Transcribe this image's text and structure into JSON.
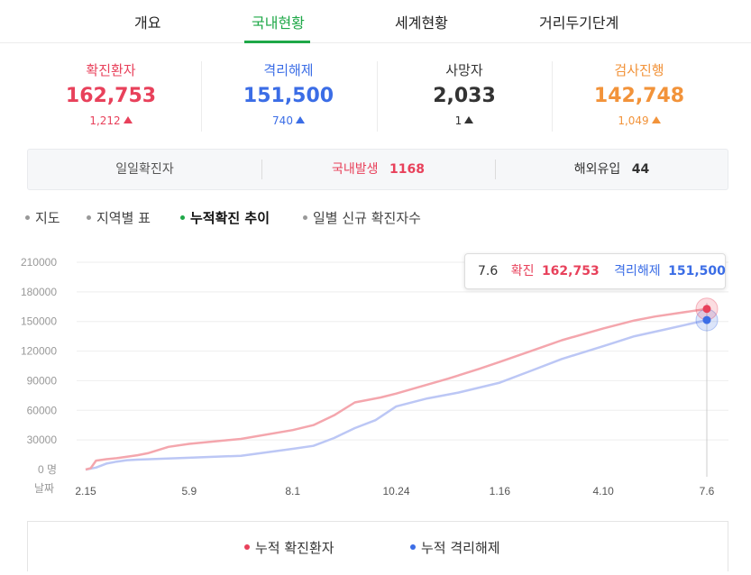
{
  "tabs": [
    {
      "label": "개요"
    },
    {
      "label": "국내현황"
    },
    {
      "label": "세계현황"
    },
    {
      "label": "거리두기단계"
    }
  ],
  "stats": {
    "confirmed": {
      "label": "확진환자",
      "value": "162,753",
      "delta": "1,212",
      "color": "#e8415b"
    },
    "released": {
      "label": "격리해제",
      "value": "151,500",
      "delta": "740",
      "color": "#3b6de6"
    },
    "deaths": {
      "label": "사망자",
      "value": "2,033",
      "delta": "1",
      "color": "#333333"
    },
    "testing": {
      "label": "검사진행",
      "value": "142,748",
      "delta": "1,049",
      "color": "#f2933a"
    }
  },
  "summary": {
    "daily_label": "일일확진자",
    "domestic_label": "국내발생",
    "domestic_value": "1168",
    "overseas_label": "해외유입",
    "overseas_value": "44"
  },
  "subnav": [
    {
      "label": "지도"
    },
    {
      "label": "지역별 표"
    },
    {
      "label": "누적확진 추이"
    },
    {
      "label": "일별 신규 확진자수"
    }
  ],
  "tooltip": {
    "date": "7.6",
    "confirmed_label": "확진",
    "confirmed_value": "162,753",
    "released_label": "격리해제",
    "released_value": "151,500"
  },
  "legend": {
    "confirmed": "누적 확진환자",
    "released": "누적 격리해제"
  },
  "chart_data": {
    "type": "line",
    "title": "",
    "xlabel": "날짜",
    "ylabel": "",
    "ylim": [
      0,
      210000
    ],
    "y_ticks": [
      0,
      30000,
      60000,
      90000,
      120000,
      150000,
      180000,
      210000
    ],
    "y_tick_labels": [
      "0 명",
      "30000",
      "60000",
      "90000",
      "120000",
      "150000",
      "180000",
      "210000"
    ],
    "x_ticks": [
      "2.15",
      "5.9",
      "8.1",
      "10.24",
      "1.16",
      "4.10",
      "7.6"
    ],
    "grid": true,
    "series": [
      {
        "name": "누적 확진환자",
        "color": "#f4a6ad",
        "points": [
          [
            0,
            0
          ],
          [
            0.05,
            1500
          ],
          [
            0.1,
            9000
          ],
          [
            0.2,
            10500
          ],
          [
            0.3,
            11500
          ],
          [
            0.4,
            13000
          ],
          [
            0.5,
            14500
          ],
          [
            0.6,
            16500
          ],
          [
            0.8,
            23000
          ],
          [
            1,
            26000
          ],
          [
            1.5,
            31000
          ],
          [
            2,
            40000
          ],
          [
            2.2,
            45000
          ],
          [
            2.4,
            55000
          ],
          [
            2.6,
            68000
          ],
          [
            2.85,
            73000
          ],
          [
            3,
            77000
          ],
          [
            3.2,
            83000
          ],
          [
            3.5,
            92000
          ],
          [
            3.8,
            102000
          ],
          [
            4,
            109000
          ],
          [
            4.3,
            120000
          ],
          [
            4.6,
            131000
          ],
          [
            5,
            143000
          ],
          [
            5.3,
            151000
          ],
          [
            5.5,
            155000
          ],
          [
            6,
            162753
          ]
        ]
      },
      {
        "name": "누적 격리해제",
        "color": "#bcc7f5",
        "points": [
          [
            0,
            0
          ],
          [
            0.1,
            2000
          ],
          [
            0.2,
            6000
          ],
          [
            0.3,
            8000
          ],
          [
            0.4,
            9500
          ],
          [
            0.5,
            10000
          ],
          [
            1,
            12000
          ],
          [
            1.5,
            14000
          ],
          [
            2,
            21000
          ],
          [
            2.2,
            24000
          ],
          [
            2.4,
            32000
          ],
          [
            2.6,
            42000
          ],
          [
            2.8,
            50000
          ],
          [
            3,
            64000
          ],
          [
            3.3,
            72000
          ],
          [
            3.6,
            78000
          ],
          [
            4,
            88000
          ],
          [
            4.3,
            100000
          ],
          [
            4.6,
            112000
          ],
          [
            5,
            125000
          ],
          [
            5.3,
            135000
          ],
          [
            5.6,
            142000
          ],
          [
            6,
            151500
          ]
        ]
      }
    ]
  }
}
